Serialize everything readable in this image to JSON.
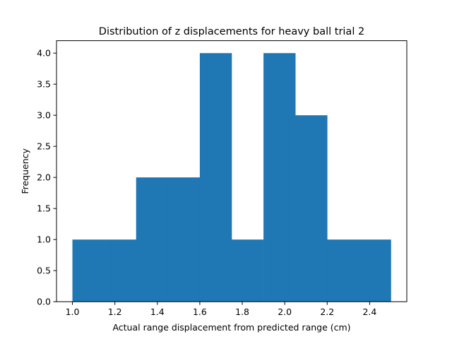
{
  "chart_data": {
    "type": "bar",
    "title": "Distribution of z displacements for heavy ball trial 2",
    "xlabel": "Actual range displacement from predicted range (cm)",
    "ylabel": "Frequency",
    "bins": [
      {
        "x0": 1.0,
        "x1": 1.15,
        "count": 1
      },
      {
        "x0": 1.15,
        "x1": 1.3,
        "count": 1
      },
      {
        "x0": 1.3,
        "x1": 1.45,
        "count": 2
      },
      {
        "x0": 1.45,
        "x1": 1.6,
        "count": 2
      },
      {
        "x0": 1.6,
        "x1": 1.75,
        "count": 4
      },
      {
        "x0": 1.75,
        "x1": 1.9,
        "count": 1
      },
      {
        "x0": 1.9,
        "x1": 2.05,
        "count": 4
      },
      {
        "x0": 2.05,
        "x1": 2.2,
        "count": 3
      },
      {
        "x0": 2.2,
        "x1": 2.35,
        "count": 1
      },
      {
        "x0": 2.35,
        "x1": 2.5,
        "count": 1
      }
    ],
    "xlim": [
      0.925,
      2.575
    ],
    "ylim": [
      0,
      4.2
    ],
    "xticks": [
      1.0,
      1.2,
      1.4,
      1.6,
      1.8,
      2.0,
      2.2,
      2.4
    ],
    "xtick_labels": [
      "1.0",
      "1.2",
      "1.4",
      "1.6",
      "1.8",
      "2.0",
      "2.2",
      "2.4"
    ],
    "yticks": [
      0,
      0.5,
      1.0,
      1.5,
      2.0,
      2.5,
      3.0,
      3.5,
      4.0
    ],
    "ytick_labels": [
      "0.0",
      "0.5",
      "1.0",
      "1.5",
      "2.0",
      "2.5",
      "3.0",
      "3.5",
      "4.0"
    ],
    "grid": false,
    "bar_color": "#1f77b4"
  }
}
